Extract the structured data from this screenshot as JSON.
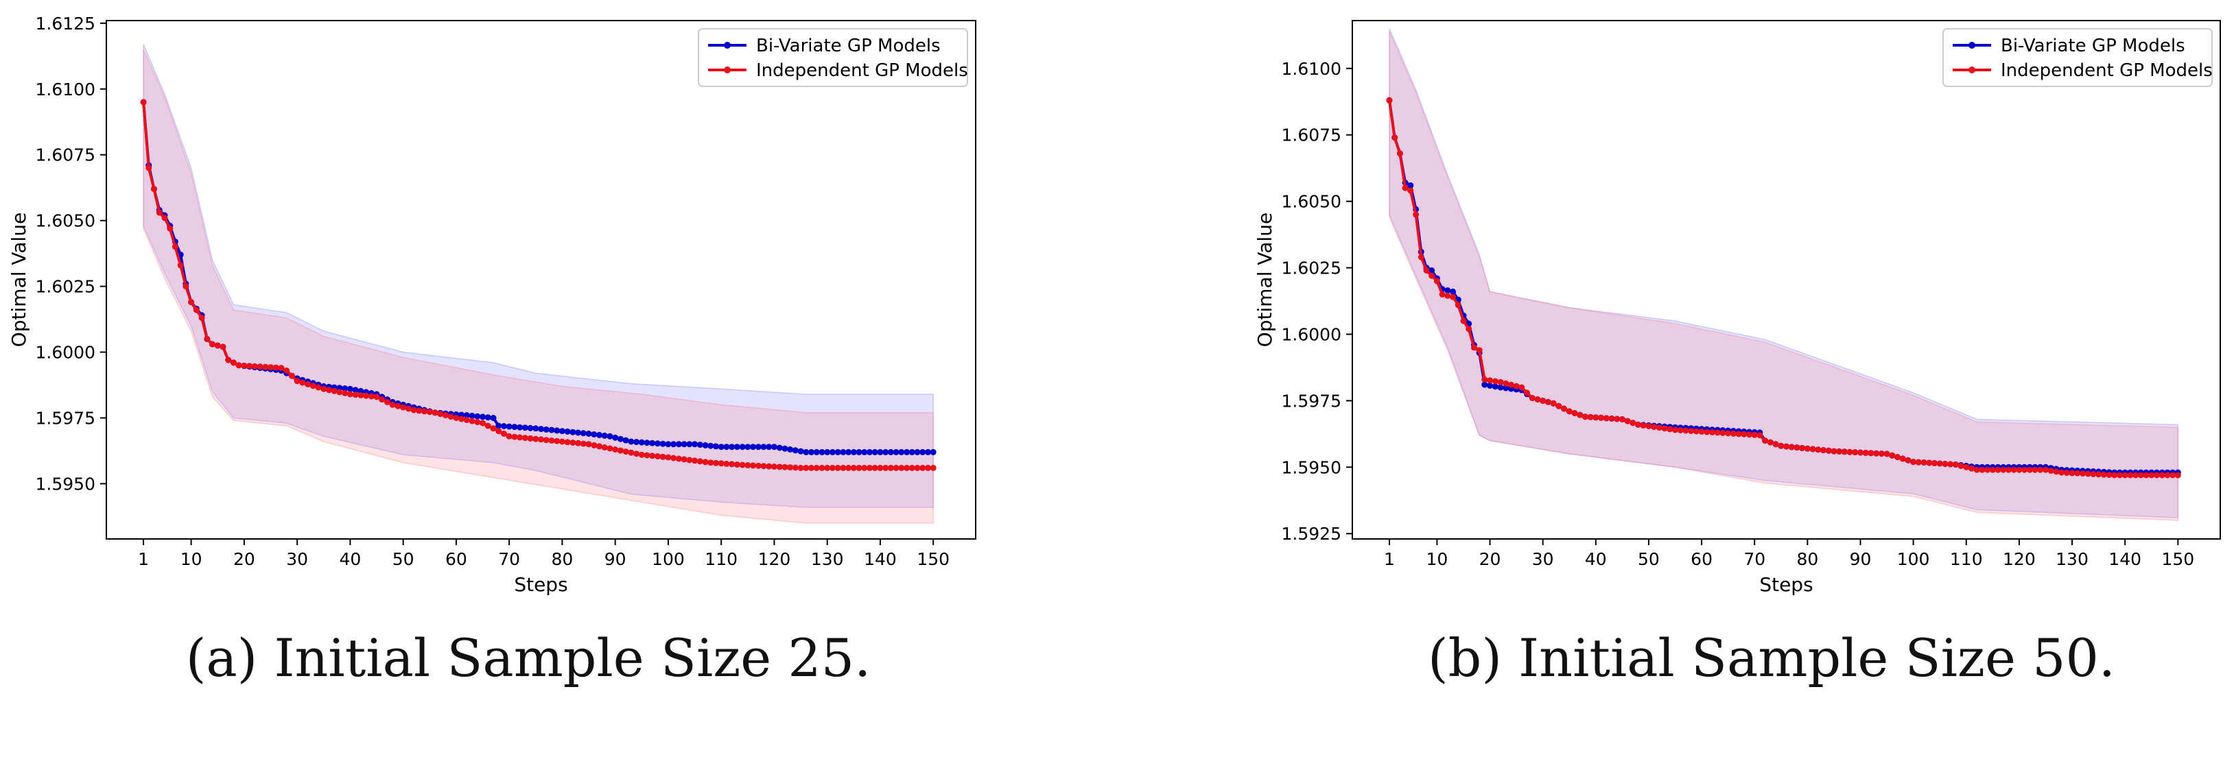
{
  "figure": {
    "caption_a": "(a) Initial Sample Size 25.",
    "caption_b": "(b) Initial Sample Size 50."
  },
  "colors": {
    "bivariate": "#0000cc",
    "independent": "#e8101a",
    "band_blue": "#7f7fff",
    "band_red": "#ff7f8a",
    "axis": "#000000"
  },
  "chart_data": [
    {
      "type": "line",
      "xlabel": "Steps",
      "ylabel": "Optimal Value",
      "xlim": [
        -6,
        158
      ],
      "ylim": [
        1.5929,
        1.6126
      ],
      "xticks": [
        1,
        10,
        20,
        30,
        40,
        50,
        60,
        70,
        80,
        90,
        100,
        110,
        120,
        130,
        140,
        150
      ],
      "yticks": [
        1.595,
        1.5975,
        1.6,
        1.6025,
        1.605,
        1.6075,
        1.61,
        1.6125
      ],
      "ytick_labels": [
        "1.5950",
        "1.5975",
        "1.6000",
        "1.6025",
        "1.6050",
        "1.6075",
        "1.6100",
        "1.6125"
      ],
      "grid": false,
      "legend_position": "upper-right",
      "series": [
        {
          "name": "Bi-Variate GP Models",
          "color_key": "bivariate",
          "knots": [
            [
              1,
              1.6095
            ],
            [
              2,
              1.6071
            ],
            [
              3,
              1.6062
            ],
            [
              4,
              1.6054
            ],
            [
              5,
              1.6052
            ],
            [
              6,
              1.6048
            ],
            [
              7,
              1.6042
            ],
            [
              8,
              1.6037
            ],
            [
              9,
              1.6026
            ],
            [
              10,
              1.6019
            ],
            [
              12,
              1.6014
            ],
            [
              13,
              1.6005
            ],
            [
              14,
              1.6003
            ],
            [
              16,
              1.6002
            ],
            [
              17,
              1.5997
            ],
            [
              18,
              1.5996
            ],
            [
              19,
              1.5995
            ],
            [
              27,
              1.5993
            ],
            [
              30,
              1.599
            ],
            [
              35,
              1.5987
            ],
            [
              40,
              1.5986
            ],
            [
              45,
              1.5984
            ],
            [
              48,
              1.5981
            ],
            [
              52,
              1.5979
            ],
            [
              56,
              1.5977
            ],
            [
              62,
              1.5976
            ],
            [
              67,
              1.5975
            ],
            [
              68,
              1.5972
            ],
            [
              75,
              1.5971
            ],
            [
              80,
              1.597
            ],
            [
              85,
              1.5969
            ],
            [
              89,
              1.5968
            ],
            [
              93,
              1.5966
            ],
            [
              100,
              1.5965
            ],
            [
              105,
              1.5965
            ],
            [
              110,
              1.5964
            ],
            [
              120,
              1.5964
            ],
            [
              123,
              1.5963
            ],
            [
              126,
              1.5962
            ],
            [
              150,
              1.5962
            ]
          ],
          "band_knots": [
            [
              1,
              1.6117,
              1.6048
            ],
            [
              5,
              1.6098,
              1.603
            ],
            [
              10,
              1.607,
              1.601
            ],
            [
              14,
              1.6035,
              1.5985
            ],
            [
              18,
              1.6018,
              1.5975
            ],
            [
              28,
              1.6015,
              1.5973
            ],
            [
              35,
              1.6008,
              1.5968
            ],
            [
              50,
              1.6,
              1.5961
            ],
            [
              67,
              1.5996,
              1.5958
            ],
            [
              75,
              1.5992,
              1.5955
            ],
            [
              93,
              1.5988,
              1.5946
            ],
            [
              110,
              1.5986,
              1.5943
            ],
            [
              126,
              1.5984,
              1.5941
            ],
            [
              150,
              1.5984,
              1.5941
            ]
          ]
        },
        {
          "name": "Independent GP Models",
          "color_key": "independent",
          "knots": [
            [
              1,
              1.6095
            ],
            [
              2,
              1.607
            ],
            [
              3,
              1.6062
            ],
            [
              4,
              1.6053
            ],
            [
              5,
              1.6051
            ],
            [
              6,
              1.6047
            ],
            [
              7,
              1.604
            ],
            [
              8,
              1.6033
            ],
            [
              9,
              1.6025
            ],
            [
              10,
              1.6019
            ],
            [
              12,
              1.6013
            ],
            [
              13,
              1.6005
            ],
            [
              14,
              1.6003
            ],
            [
              16,
              1.6002
            ],
            [
              17,
              1.5997
            ],
            [
              18,
              1.5996
            ],
            [
              19,
              1.5995
            ],
            [
              27,
              1.5994
            ],
            [
              28,
              1.5993
            ],
            [
              30,
              1.5989
            ],
            [
              35,
              1.5986
            ],
            [
              40,
              1.5984
            ],
            [
              45,
              1.5983
            ],
            [
              48,
              1.598
            ],
            [
              52,
              1.5978
            ],
            [
              56,
              1.5977
            ],
            [
              60,
              1.5975
            ],
            [
              65,
              1.5973
            ],
            [
              68,
              1.597
            ],
            [
              70,
              1.5968
            ],
            [
              75,
              1.5967
            ],
            [
              80,
              1.5966
            ],
            [
              85,
              1.5965
            ],
            [
              90,
              1.5963
            ],
            [
              95,
              1.5961
            ],
            [
              100,
              1.596
            ],
            [
              108,
              1.5958
            ],
            [
              115,
              1.5957
            ],
            [
              125,
              1.5956
            ],
            [
              150,
              1.5956
            ]
          ],
          "band_knots": [
            [
              1,
              1.6115,
              1.6047
            ],
            [
              5,
              1.6097,
              1.6028
            ],
            [
              10,
              1.6068,
              1.6008
            ],
            [
              14,
              1.6033,
              1.5983
            ],
            [
              18,
              1.6016,
              1.5974
            ],
            [
              28,
              1.6013,
              1.5972
            ],
            [
              35,
              1.6006,
              1.5966
            ],
            [
              50,
              1.5998,
              1.5958
            ],
            [
              68,
              1.5991,
              1.5952
            ],
            [
              80,
              1.5987,
              1.5948
            ],
            [
              95,
              1.5984,
              1.5943
            ],
            [
              110,
              1.598,
              1.5938
            ],
            [
              126,
              1.5977,
              1.5935
            ],
            [
              150,
              1.5977,
              1.5935
            ]
          ]
        }
      ]
    },
    {
      "type": "line",
      "xlabel": "Steps",
      "ylabel": "Optimal Value",
      "xlim": [
        -6,
        158
      ],
      "ylim": [
        1.5923,
        1.6118
      ],
      "xticks": [
        1,
        10,
        20,
        30,
        40,
        50,
        60,
        70,
        80,
        90,
        100,
        110,
        120,
        130,
        140,
        150
      ],
      "yticks": [
        1.5925,
        1.595,
        1.5975,
        1.6,
        1.6025,
        1.605,
        1.6075,
        1.61
      ],
      "ytick_labels": [
        "1.5925",
        "1.5950",
        "1.5975",
        "1.6000",
        "1.6025",
        "1.6050",
        "1.6075",
        "1.6100"
      ],
      "grid": false,
      "legend_position": "upper-right",
      "series": [
        {
          "name": "Bi-Variate GP Models",
          "color_key": "bivariate",
          "knots": [
            [
              1,
              1.6088
            ],
            [
              2,
              1.6074
            ],
            [
              3,
              1.6068
            ],
            [
              4,
              1.6057
            ],
            [
              5,
              1.6056
            ],
            [
              6,
              1.6047
            ],
            [
              7,
              1.6031
            ],
            [
              8,
              1.6025
            ],
            [
              9,
              1.6024
            ],
            [
              10,
              1.6021
            ],
            [
              11,
              1.6017
            ],
            [
              13,
              1.6016
            ],
            [
              14,
              1.6013
            ],
            [
              15,
              1.6007
            ],
            [
              16,
              1.6004
            ],
            [
              17,
              1.5996
            ],
            [
              18,
              1.5993
            ],
            [
              19,
              1.5981
            ],
            [
              22,
              1.598
            ],
            [
              26,
              1.5979
            ],
            [
              28,
              1.5976
            ],
            [
              32,
              1.5974
            ],
            [
              35,
              1.5971
            ],
            [
              38,
              1.5969
            ],
            [
              45,
              1.5968
            ],
            [
              48,
              1.5966
            ],
            [
              55,
              1.5965
            ],
            [
              71,
              1.5963
            ],
            [
              72,
              1.596
            ],
            [
              75,
              1.5958
            ],
            [
              80,
              1.5957
            ],
            [
              85,
              1.5956
            ],
            [
              95,
              1.5955
            ],
            [
              100,
              1.5952
            ],
            [
              108,
              1.5951
            ],
            [
              112,
              1.595
            ],
            [
              125,
              1.595
            ],
            [
              128,
              1.5949
            ],
            [
              138,
              1.5948
            ],
            [
              150,
              1.5948
            ]
          ],
          "band_knots": [
            [
              1,
              1.6115,
              1.6045
            ],
            [
              6,
              1.6092,
              1.6022
            ],
            [
              12,
              1.606,
              1.5995
            ],
            [
              18,
              1.603,
              1.5962
            ],
            [
              20,
              1.6016,
              1.596
            ],
            [
              35,
              1.601,
              1.5955
            ],
            [
              55,
              1.6005,
              1.595
            ],
            [
              72,
              1.5998,
              1.5945
            ],
            [
              100,
              1.5978,
              1.594
            ],
            [
              112,
              1.5968,
              1.5934
            ],
            [
              150,
              1.5966,
              1.5931
            ]
          ]
        },
        {
          "name": "Independent GP Models",
          "color_key": "independent",
          "knots": [
            [
              1,
              1.6088
            ],
            [
              2,
              1.6074
            ],
            [
              3,
              1.6068
            ],
            [
              4,
              1.6055
            ],
            [
              5,
              1.6054
            ],
            [
              6,
              1.6045
            ],
            [
              7,
              1.6029
            ],
            [
              8,
              1.6024
            ],
            [
              9,
              1.6022
            ],
            [
              10,
              1.602
            ],
            [
              11,
              1.6015
            ],
            [
              13,
              1.6014
            ],
            [
              14,
              1.6011
            ],
            [
              15,
              1.6005
            ],
            [
              16,
              1.6002
            ],
            [
              17,
              1.5995
            ],
            [
              18,
              1.5994
            ],
            [
              19,
              1.5983
            ],
            [
              22,
              1.5982
            ],
            [
              26,
              1.598
            ],
            [
              28,
              1.5976
            ],
            [
              32,
              1.5974
            ],
            [
              35,
              1.5971
            ],
            [
              38,
              1.5969
            ],
            [
              45,
              1.5968
            ],
            [
              48,
              1.5966
            ],
            [
              55,
              1.5964
            ],
            [
              71,
              1.5962
            ],
            [
              72,
              1.596
            ],
            [
              75,
              1.5958
            ],
            [
              80,
              1.5957
            ],
            [
              85,
              1.5956
            ],
            [
              95,
              1.5955
            ],
            [
              100,
              1.5952
            ],
            [
              108,
              1.5951
            ],
            [
              112,
              1.5949
            ],
            [
              125,
              1.5949
            ],
            [
              128,
              1.5948
            ],
            [
              138,
              1.5947
            ],
            [
              150,
              1.5947
            ]
          ],
          "band_knots": [
            [
              1,
              1.6114,
              1.6044
            ],
            [
              6,
              1.6091,
              1.6021
            ],
            [
              12,
              1.6059,
              1.5994
            ],
            [
              18,
              1.6029,
              1.5962
            ],
            [
              20,
              1.6016,
              1.596
            ],
            [
              35,
              1.601,
              1.5955
            ],
            [
              55,
              1.6004,
              1.595
            ],
            [
              72,
              1.5997,
              1.5944
            ],
            [
              100,
              1.5977,
              1.5939
            ],
            [
              112,
              1.5967,
              1.5933
            ],
            [
              150,
              1.5965,
              1.593
            ]
          ]
        }
      ]
    }
  ]
}
